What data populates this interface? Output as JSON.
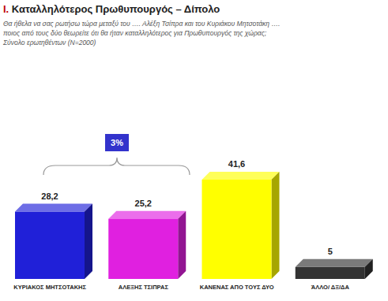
{
  "chart_data": {
    "type": "bar",
    "title": "Ι. Καταλληλότερος Πρωθυπουργός – Δίπολο",
    "subtitle": [
      "Θα ήθελα να σας ρωτήσω τώρα μεταξύ του …. Αλέξη Τσίπρα και του Κυριάκου Μητσοτάκη ….",
      "ποιος από τους δύο θεωρείτε ότι θα ήταν καταλληλότερος για Πρωθυπουργός της χώρας;",
      "Σύνολο ερωτηθέντων (Ν=2000)"
    ],
    "annotation": "3%",
    "categories": [
      "ΚΥΡΙΑΚΟΣ ΜΗΤΣΟΤΑΚΗΣ",
      "ΑΛΕΞΗΣ ΤΣΙΠΡΑΣ",
      "ΚΑΝΕΝΑΣ ΑΠΟ ΤΟΥΣ ΔΥΟ",
      "ΆΛΛΟ/ ΔΞ/ΔΑ"
    ],
    "values": [
      28.2,
      25.2,
      41.6,
      5
    ],
    "value_labels": [
      "28,2",
      "25,2",
      "41,6",
      "5"
    ],
    "colors": [
      "#2020d8",
      "#e020e0",
      "#ffff00",
      "#333333"
    ],
    "data_labels": true,
    "tick_labels": "x"
  }
}
